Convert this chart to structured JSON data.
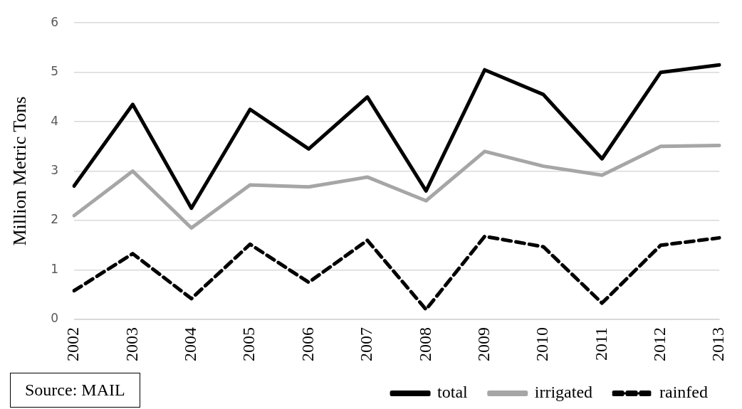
{
  "chart_data": {
    "type": "line",
    "categories": [
      "2002",
      "2003",
      "2004",
      "2005",
      "2006",
      "2007",
      "2008",
      "2009",
      "2010",
      "2011",
      "2012",
      "2013"
    ],
    "series": [
      {
        "name": "total",
        "color": "#000000",
        "line_style": "solid",
        "values": [
          2.7,
          4.35,
          2.25,
          4.25,
          3.45,
          4.5,
          2.6,
          5.05,
          4.55,
          3.25,
          5.0,
          5.15
        ]
      },
      {
        "name": "irrigated",
        "color": "#a6a6a6",
        "line_style": "solid",
        "values": [
          2.1,
          3.0,
          1.85,
          2.72,
          2.68,
          2.88,
          2.4,
          3.4,
          3.1,
          2.92,
          3.5,
          3.52
        ]
      },
      {
        "name": "rainfed",
        "color": "#000000",
        "line_style": "dashed",
        "values": [
          0.58,
          1.33,
          0.42,
          1.52,
          0.75,
          1.6,
          0.2,
          1.68,
          1.47,
          0.33,
          1.5,
          1.65
        ]
      }
    ],
    "ylabel": "Million Metric Tons",
    "ylim": [
      0,
      6
    ],
    "yticks": [
      0,
      1,
      2,
      3,
      4,
      5,
      6
    ],
    "grid": "y",
    "legend": "bottom",
    "marker": "none",
    "annotations": [
      "Source: MAIL"
    ]
  }
}
